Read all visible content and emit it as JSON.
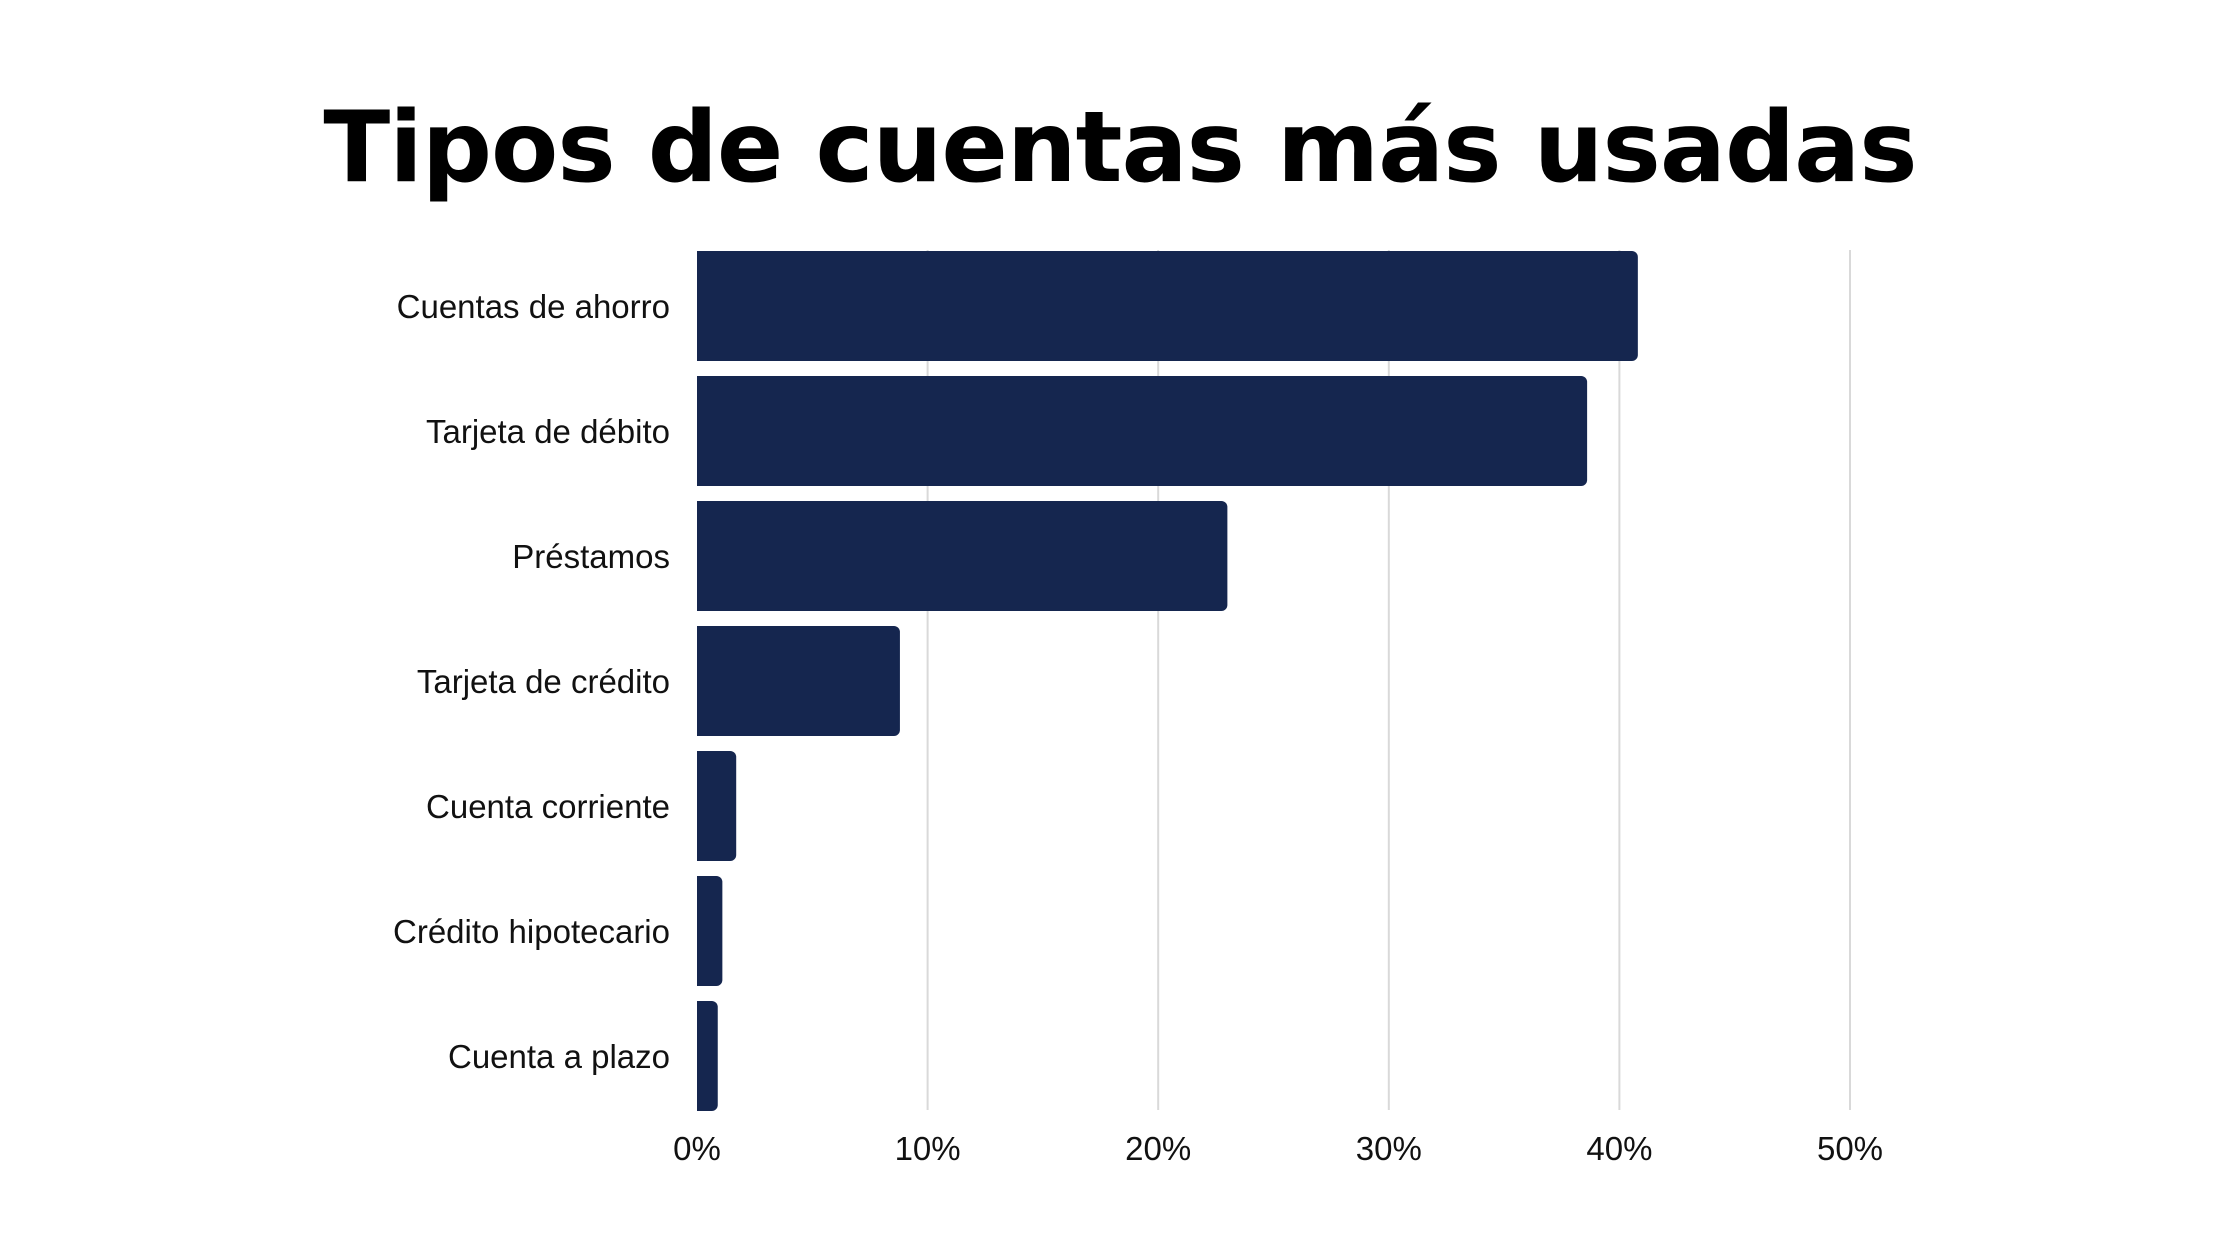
{
  "chart_data": {
    "type": "bar",
    "orientation": "horizontal",
    "title": "Tipos de cuentas más usadas",
    "categories": [
      "Cuentas de ahorro",
      "Tarjeta de débito",
      "Préstamos",
      "Tarjeta de crédito",
      "Cuenta corriente",
      "Crédito hipotecario",
      "Cuenta a plazo"
    ],
    "values": [
      40.8,
      38.6,
      23.0,
      8.8,
      1.7,
      1.1,
      0.9
    ],
    "unit": "%",
    "xlim": [
      0,
      50
    ],
    "xticks": [
      "0%",
      "10%",
      "20%",
      "30%",
      "40%",
      "50%"
    ],
    "grid": true,
    "legend": "none",
    "bar_color": "#15264f",
    "grid_color": "#d9d9d9"
  }
}
